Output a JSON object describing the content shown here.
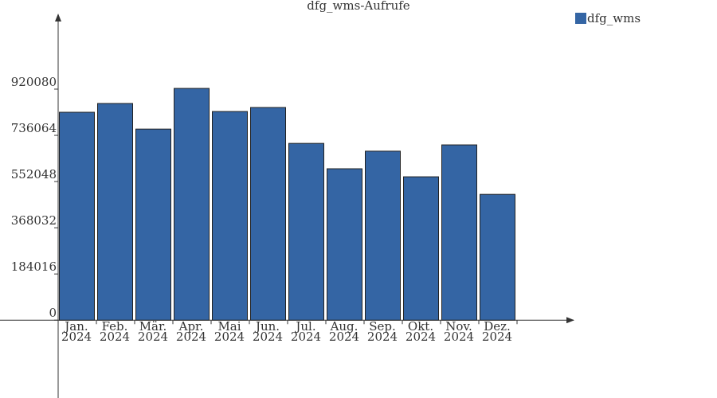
{
  "chart_data": {
    "type": "bar",
    "title": "dfg_wms-Aufrufe",
    "categories": [
      "Jan.\n2024",
      "Feb.\n2024",
      "Mär.\n2024",
      "Apr.\n2024",
      "Mai\n2024",
      "Jun.\n2024",
      "Jul.\n2024",
      "Aug.\n2024",
      "Sep.\n2024",
      "Okt.\n2024",
      "Nov.\n2024",
      "Dez.\n2024"
    ],
    "series": [
      {
        "name": "dfg_wms",
        "color": "#3465a4",
        "values": [
          828000,
          863000,
          761000,
          923000,
          831000,
          847000,
          704000,
          603000,
          673000,
          571000,
          698000,
          501000
        ]
      }
    ],
    "ylim": [
      -310000,
      1218000
    ],
    "yticks": [
      0,
      184016,
      368032,
      552048,
      736064,
      920080
    ],
    "legend": "top-right"
  }
}
